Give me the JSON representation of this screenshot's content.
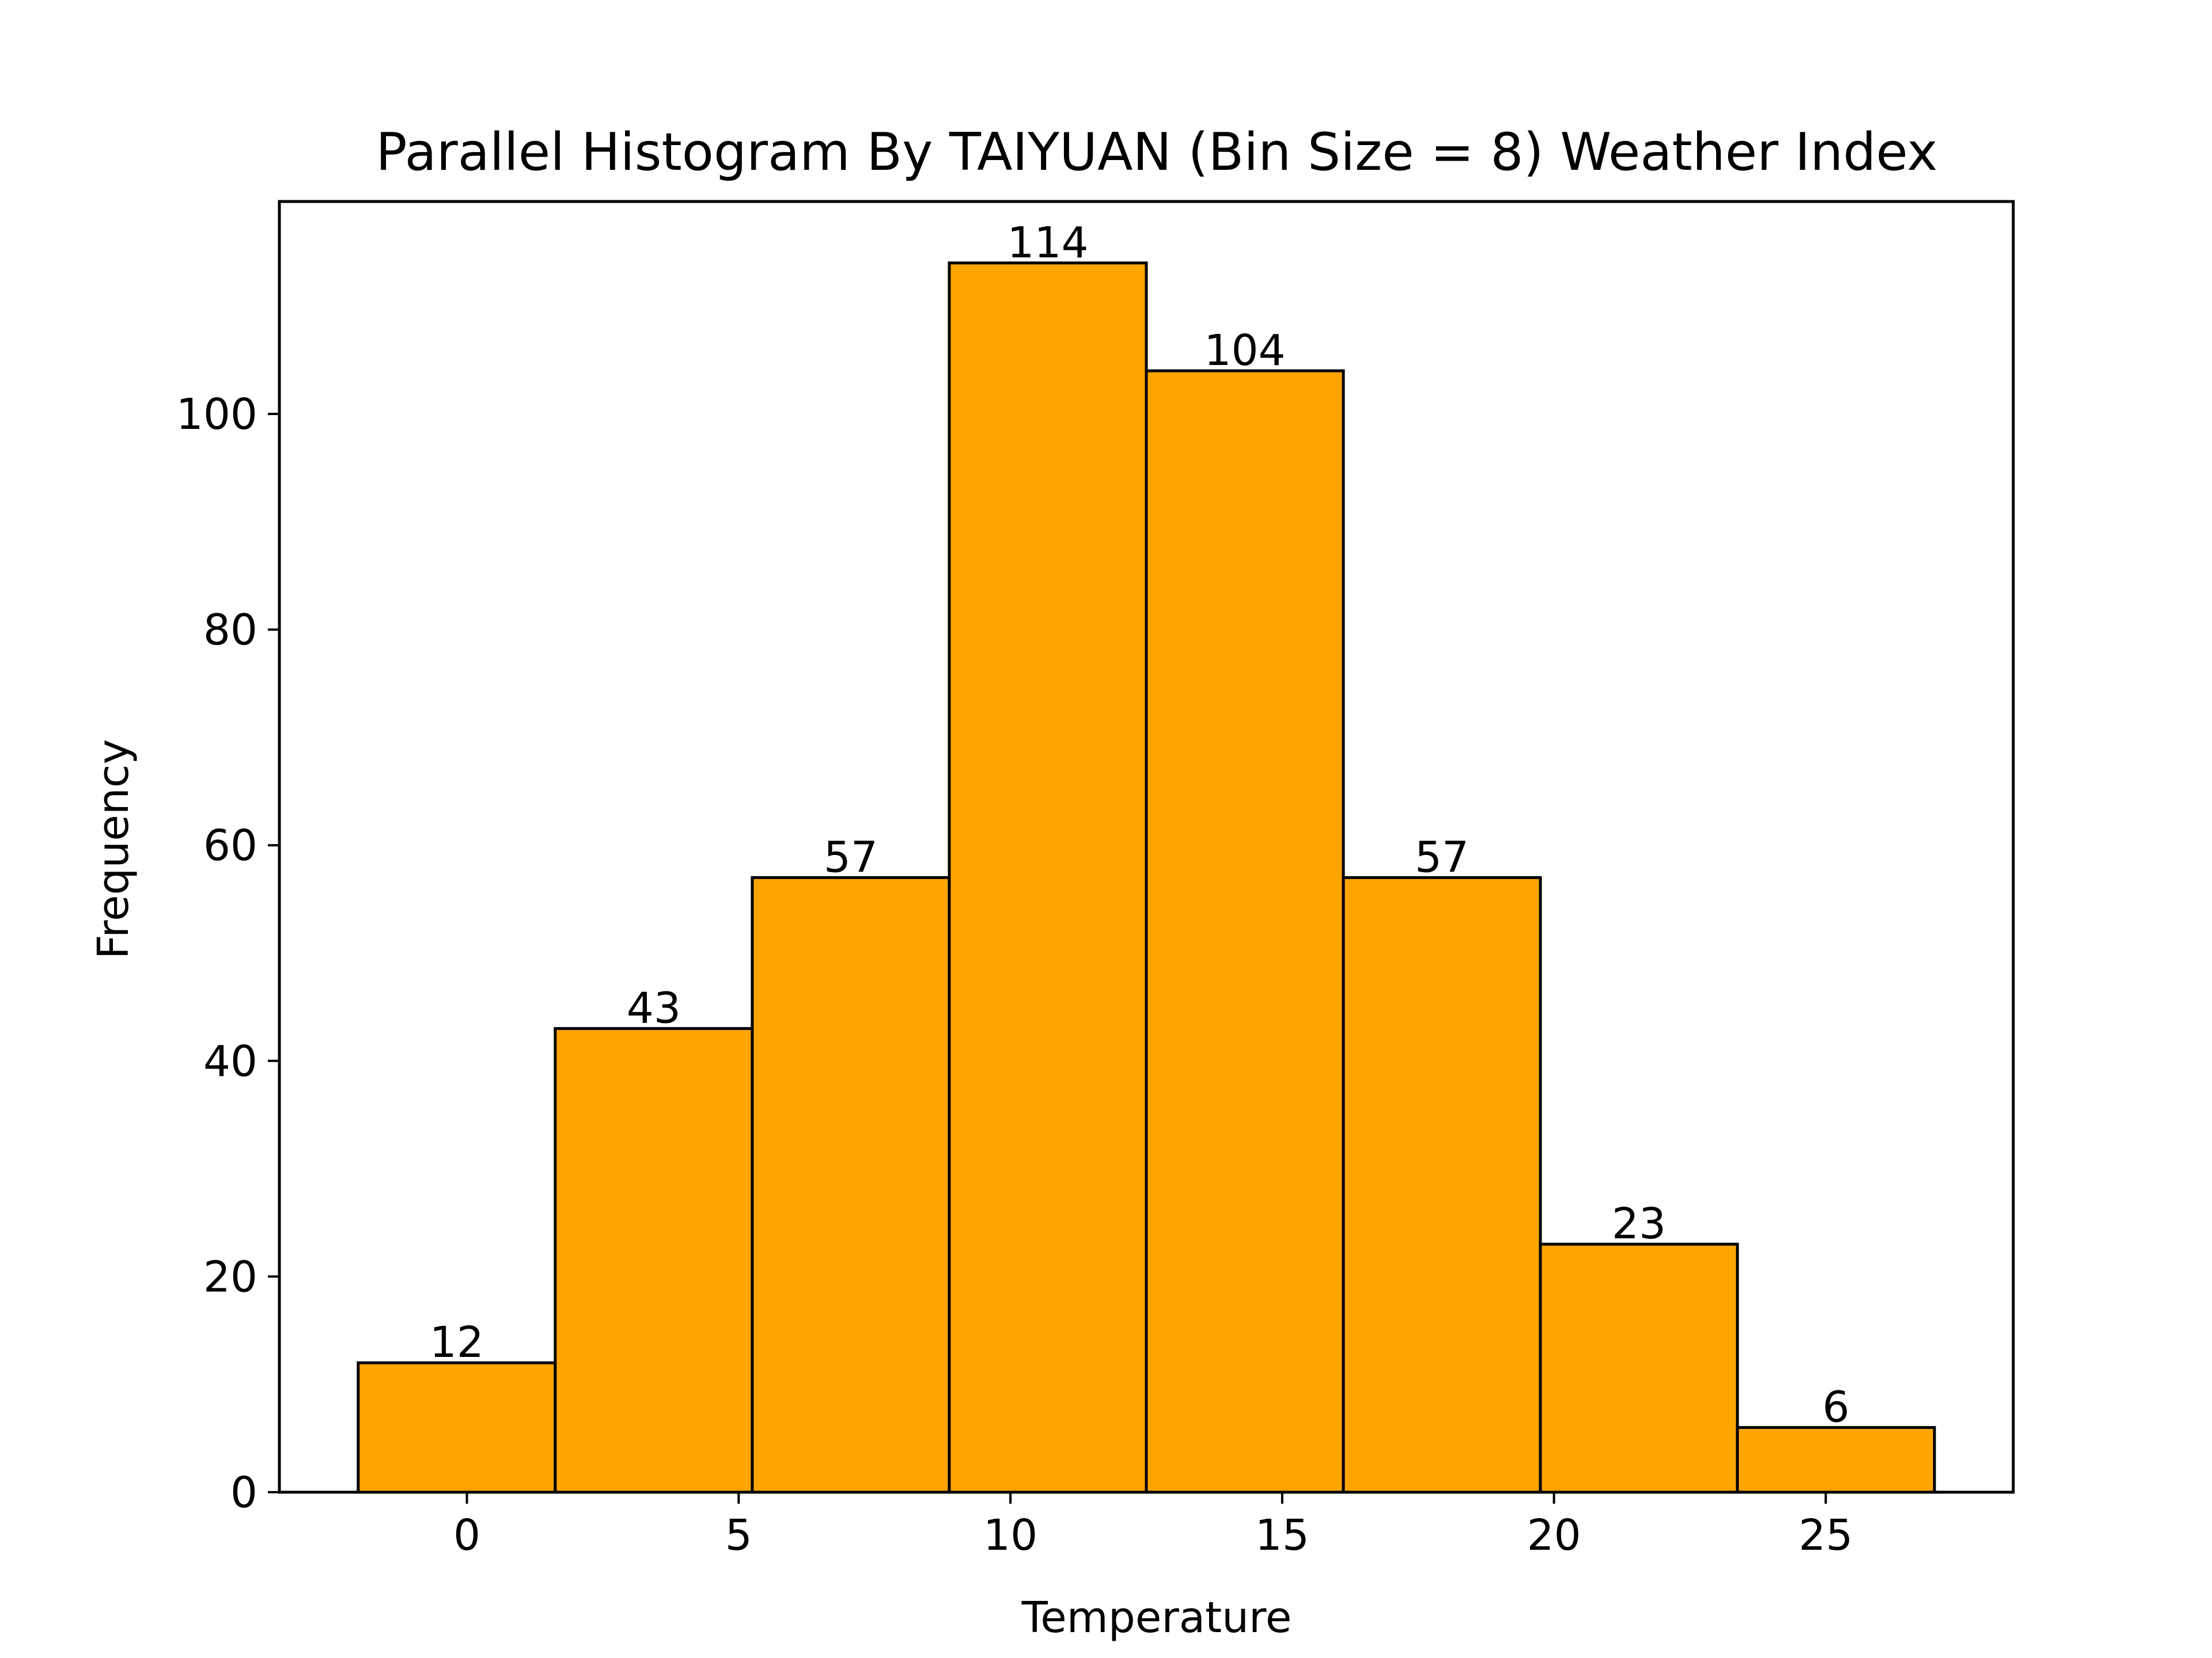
{
  "chart_data": {
    "type": "bar",
    "title": "Parallel Histogram By TAIYUAN (Bin Size = 8) Weather Index",
    "xlabel": "Temperature",
    "ylabel": "Frequency",
    "bin_edges": [
      -2.0,
      1.625,
      5.25,
      8.875,
      12.5,
      16.125,
      19.75,
      23.375,
      27.0
    ],
    "values": [
      12,
      43,
      57,
      114,
      104,
      57,
      23,
      6
    ],
    "bar_labels": [
      "12",
      "43",
      "57",
      "114",
      "104",
      "57",
      "23",
      "6"
    ],
    "xlim": [
      -3.45,
      28.45
    ],
    "ylim": [
      0,
      119.7
    ],
    "xticks": [
      0,
      5,
      10,
      15,
      20,
      25
    ],
    "xtick_labels": [
      "0",
      "5",
      "10",
      "15",
      "20",
      "25"
    ],
    "yticks": [
      0,
      20,
      40,
      60,
      80,
      100
    ],
    "ytick_labels": [
      "0",
      "20",
      "40",
      "60",
      "80",
      "100"
    ],
    "grid": false,
    "legend": "none",
    "bar_color": "#ffa500",
    "edge_color": "#000000"
  }
}
